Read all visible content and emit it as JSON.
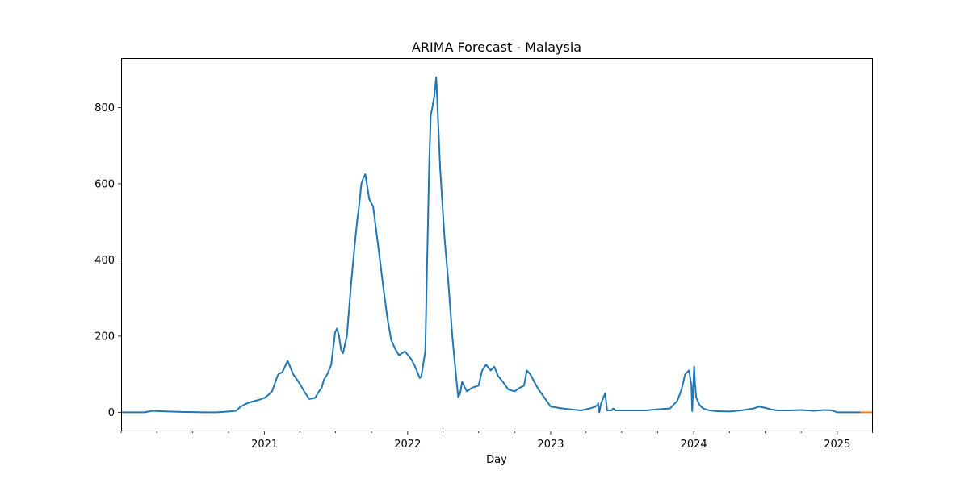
{
  "chart_data": {
    "type": "line",
    "title": "ARIMA Forecast - Malaysia",
    "xlabel": "Day",
    "ylabel": "",
    "x_range": [
      "2020-01-01",
      "2025-03-31"
    ],
    "ylim": [
      -50,
      930
    ],
    "grid": false,
    "x_ticks": [
      {
        "value": "2021-01-01",
        "label": "2021"
      },
      {
        "value": "2022-01-01",
        "label": "2022"
      },
      {
        "value": "2023-01-01",
        "label": "2023"
      },
      {
        "value": "2024-01-01",
        "label": "2024"
      },
      {
        "value": "2025-01-01",
        "label": "2025"
      }
    ],
    "x_minor_ticks": [
      "2020-01-01",
      "2020-04-01",
      "2020-07-01",
      "2020-10-01",
      "2021-04-01",
      "2021-07-01",
      "2021-10-01",
      "2022-04-01",
      "2022-07-01",
      "2022-10-01",
      "2023-04-01",
      "2023-07-01",
      "2023-10-01",
      "2024-04-01",
      "2024-07-01",
      "2024-10-01",
      "2025-04-01"
    ],
    "y_ticks": [
      0,
      200,
      400,
      600,
      800
    ],
    "series": [
      {
        "color": "#1f77b4",
        "x": [
          "2020-01-01",
          "2020-03-01",
          "2020-03-20",
          "2020-04-10",
          "2020-05-01",
          "2020-06-01",
          "2020-08-01",
          "2020-09-01",
          "2020-10-01",
          "2020-10-20",
          "2020-11-01",
          "2020-11-20",
          "2020-12-01",
          "2020-12-15",
          "2021-01-01",
          "2021-01-10",
          "2021-01-20",
          "2021-01-27",
          "2021-02-01",
          "2021-02-05",
          "2021-02-15",
          "2021-03-01",
          "2021-03-15",
          "2021-04-01",
          "2021-04-15",
          "2021-04-25",
          "2021-05-10",
          "2021-05-20",
          "2021-05-27",
          "2021-06-01",
          "2021-06-10",
          "2021-06-20",
          "2021-06-30",
          "2021-07-05",
          "2021-07-10",
          "2021-07-15",
          "2021-07-20",
          "2021-07-30",
          "2021-08-10",
          "2021-08-20",
          "2021-08-25",
          "2021-08-30",
          "2021-09-05",
          "2021-09-10",
          "2021-09-15",
          "2021-09-25",
          "2021-10-05",
          "2021-10-20",
          "2021-11-01",
          "2021-11-10",
          "2021-11-20",
          "2021-12-01",
          "2021-12-10",
          "2021-12-25",
          "2022-01-10",
          "2022-01-20",
          "2022-02-01",
          "2022-02-05",
          "2022-02-15",
          "2022-02-25",
          "2022-03-01",
          "2022-03-05",
          "2022-03-10",
          "2022-03-15",
          "2022-03-25",
          "2022-04-05",
          "2022-04-15",
          "2022-04-25",
          "2022-05-05",
          "2022-05-10",
          "2022-05-15",
          "2022-05-20",
          "2022-06-01",
          "2022-06-15",
          "2022-07-01",
          "2022-07-10",
          "2022-07-20",
          "2022-08-01",
          "2022-08-10",
          "2022-08-20",
          "2022-09-01",
          "2022-09-15",
          "2022-10-01",
          "2022-10-15",
          "2022-10-25",
          "2022-11-01",
          "2022-11-10",
          "2022-11-20",
          "2022-12-01",
          "2022-12-15",
          "2023-01-01",
          "2023-02-01",
          "2023-03-01",
          "2023-03-20",
          "2023-04-10",
          "2023-04-25",
          "2023-05-01",
          "2023-05-02",
          "2023-05-05",
          "2023-05-10",
          "2023-05-20",
          "2023-05-25",
          "2023-06-05",
          "2023-06-10",
          "2023-06-15",
          "2023-06-25",
          "2023-07-10",
          "2023-08-01",
          "2023-09-01",
          "2023-10-01",
          "2023-11-01",
          "2023-11-20",
          "2023-12-01",
          "2023-12-10",
          "2023-12-20",
          "2023-12-26",
          "2023-12-28",
          "2024-01-02",
          "2024-01-04",
          "2024-01-07",
          "2024-01-15",
          "2024-01-25",
          "2024-02-10",
          "2024-03-01",
          "2024-04-01",
          "2024-05-01",
          "2024-06-01",
          "2024-06-15",
          "2024-07-01",
          "2024-07-15",
          "2024-08-01",
          "2024-09-01",
          "2024-10-01",
          "2024-11-01",
          "2024-12-01",
          "2024-12-20",
          "2025-01-01",
          "2025-02-01",
          "2025-03-01"
        ],
        "y": [
          0,
          0,
          4,
          3,
          2,
          1,
          0,
          0,
          2,
          4,
          15,
          25,
          28,
          32,
          38,
          45,
          55,
          75,
          90,
          100,
          105,
          135,
          100,
          75,
          50,
          35,
          38,
          55,
          65,
          85,
          100,
          125,
          210,
          220,
          200,
          165,
          155,
          200,
          340,
          450,
          500,
          540,
          600,
          615,
          625,
          560,
          540,
          420,
          320,
          250,
          190,
          165,
          150,
          160,
          140,
          120,
          90,
          95,
          160,
          650,
          780,
          800,
          830,
          880,
          640,
          460,
          340,
          200,
          90,
          40,
          50,
          80,
          55,
          65,
          70,
          110,
          125,
          110,
          120,
          95,
          80,
          60,
          55,
          65,
          70,
          110,
          100,
          80,
          60,
          40,
          15,
          10,
          7,
          5,
          10,
          15,
          20,
          25,
          0,
          25,
          50,
          5,
          5,
          10,
          5,
          5,
          5,
          5,
          5,
          8,
          10,
          30,
          60,
          100,
          110,
          70,
          3,
          120,
          80,
          40,
          20,
          10,
          5,
          3,
          2,
          5,
          10,
          15,
          12,
          8,
          5,
          5,
          6,
          4,
          6,
          5,
          0,
          0,
          0
        ]
      },
      {
        "color": "#ff7f0e",
        "x": [
          "2025-03-01",
          "2025-03-31"
        ],
        "y": [
          0,
          0
        ]
      }
    ]
  }
}
